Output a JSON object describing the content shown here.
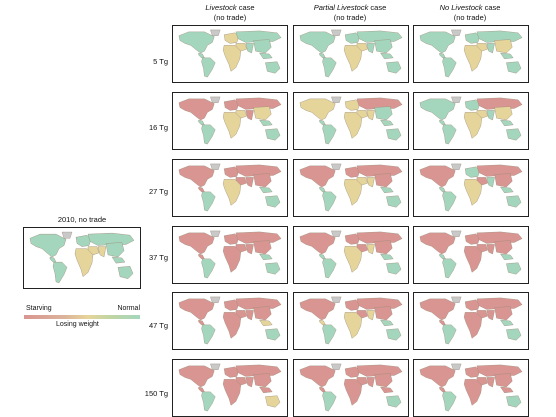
{
  "columns": [
    {
      "title": "Livestock",
      "suffix": " case",
      "subtitle": "(no trade)"
    },
    {
      "title": "Partial Livestock",
      "suffix": " case",
      "subtitle": "(no trade)"
    },
    {
      "title": "No Livestock",
      "suffix": " case",
      "subtitle": "(no trade)"
    }
  ],
  "rows": [
    "5 Tg",
    "16 Tg",
    "27 Tg",
    "37 Tg",
    "47 Tg",
    "150 Tg"
  ],
  "baseline_title": "2010, no trade",
  "legend": {
    "left_label": "Starving",
    "right_label": "Normal",
    "middle_label": "Losing weight",
    "colors": {
      "starving": "#d99591",
      "losing_weight": "#e6d59a",
      "normal": "#a4d6bd",
      "no_data": "#c9c9c9"
    }
  }
}
